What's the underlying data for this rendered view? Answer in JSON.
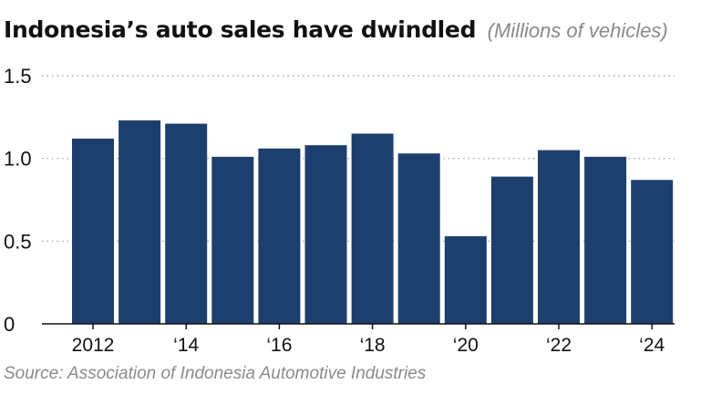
{
  "title": "Indonesia’s auto sales have dwindled",
  "subtitle": "(Millions of vehicles)",
  "source": "Source: Association of Indonesia Automotive Industries",
  "colors": {
    "bar": "#1c3f6e",
    "grid": "#9a9a9a",
    "axis": "#111111",
    "text": "#111111",
    "muted": "#8a8a8a"
  },
  "chart_data": {
    "type": "bar",
    "categories": [
      "2012",
      "2013",
      "2014",
      "2015",
      "2016",
      "2017",
      "2018",
      "2019",
      "2020",
      "2021",
      "2022",
      "2023",
      "2024"
    ],
    "values": [
      1.12,
      1.23,
      1.21,
      1.01,
      1.06,
      1.08,
      1.15,
      1.03,
      0.53,
      0.89,
      1.05,
      1.01,
      0.87
    ],
    "ylim": [
      0,
      1.5
    ],
    "yticks": [
      0,
      0.5,
      1.0,
      1.5
    ],
    "ytick_labels": [
      "0",
      "0.5",
      "1.0",
      "1.5"
    ],
    "xtick_labels": [
      "2012",
      "",
      "‘14",
      "",
      "‘16",
      "",
      "‘18",
      "",
      "‘20",
      "",
      "‘22",
      "",
      "‘24"
    ],
    "grid": true,
    "title": "Indonesia’s auto sales have dwindled",
    "xlabel": "",
    "ylabel": ""
  }
}
